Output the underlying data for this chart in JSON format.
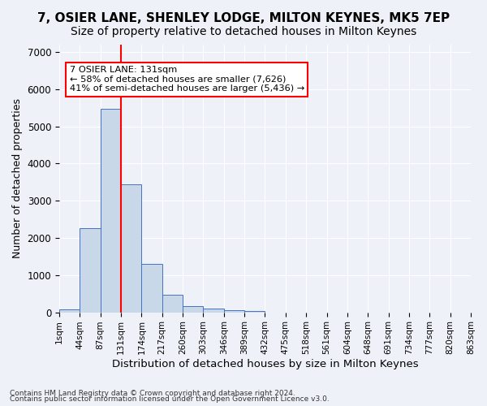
{
  "title1": "7, OSIER LANE, SHENLEY LODGE, MILTON KEYNES, MK5 7EP",
  "title2": "Size of property relative to detached houses in Milton Keynes",
  "xlabel": "Distribution of detached houses by size in Milton Keynes",
  "ylabel": "Number of detached properties",
  "bin_labels": [
    "1sqm",
    "44sqm",
    "87sqm",
    "131sqm",
    "174sqm",
    "217sqm",
    "260sqm",
    "303sqm",
    "346sqm",
    "389sqm",
    "432sqm",
    "475sqm",
    "518sqm",
    "561sqm",
    "604sqm",
    "648sqm",
    "691sqm",
    "734sqm",
    "777sqm",
    "820sqm",
    "863sqm"
  ],
  "bar_values": [
    80,
    2270,
    5470,
    3440,
    1310,
    470,
    165,
    90,
    55,
    30,
    0,
    0,
    0,
    0,
    0,
    0,
    0,
    0,
    0,
    0
  ],
  "bar_color": "#c8d8e8",
  "bar_edge_color": "#4472c4",
  "property_line_x": 3,
  "property_line_label": "7 OSIER LANE: 131sqm",
  "annotation_line1": "← 58% of detached houses are smaller (7,626)",
  "annotation_line2": "41% of semi-detached houses are larger (5,436) →",
  "annotation_box_color": "white",
  "annotation_box_edge": "red",
  "property_line_color": "red",
  "ylim": [
    0,
    7200
  ],
  "yticks": [
    0,
    1000,
    2000,
    3000,
    4000,
    5000,
    6000,
    7000
  ],
  "footer_line1": "Contains HM Land Registry data © Crown copyright and database right 2024.",
  "footer_line2": "Contains public sector information licensed under the Open Government Licence v3.0.",
  "background_color": "#eef2f8",
  "grid_color": "white",
  "title_fontsize": 11,
  "subtitle_fontsize": 10,
  "axis_fontsize": 9
}
